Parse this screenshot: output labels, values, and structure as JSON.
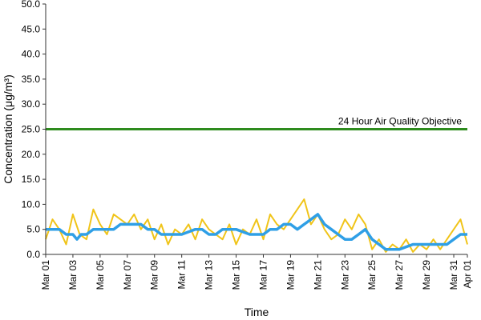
{
  "chart_data": {
    "type": "line",
    "xlabel": "Time",
    "ylabel": "Concentration (μg/m³)",
    "ylim": [
      0,
      50
    ],
    "yticks": [
      "0.0",
      "5.0",
      "10.0",
      "15.0",
      "20.0",
      "25.0",
      "30.0",
      "35.0",
      "40.0",
      "45.0",
      "50.0"
    ],
    "xticks": [
      "Mar 01",
      "Mar 03",
      "Mar 05",
      "Mar 07",
      "Mar 09",
      "Mar 11",
      "Mar 13",
      "Mar 15",
      "Mar 17",
      "Mar 19",
      "Mar 21",
      "Mar 23",
      "Mar 25",
      "Mar 27",
      "Mar 29",
      "Mar 31",
      "Apr 01"
    ],
    "x_range_days": [
      0,
      31
    ],
    "grid": false,
    "reference_line": {
      "label": "24 Hour Air Quality Objective",
      "value": 25.0,
      "color": "#2e8b1e"
    },
    "series": [
      {
        "color": "#f0c419",
        "x_days": [
          0,
          0.5,
          1,
          1.5,
          2,
          2.5,
          3,
          3.5,
          4,
          4.5,
          5,
          5.5,
          6,
          6.5,
          7,
          7.5,
          8,
          8.5,
          9,
          9.5,
          10,
          10.5,
          11,
          11.5,
          12,
          12.5,
          13,
          13.5,
          14,
          14.5,
          15,
          15.5,
          16,
          16.5,
          17,
          17.5,
          18,
          18.5,
          19,
          19.5,
          20,
          20.5,
          21,
          21.5,
          22,
          22.5,
          23,
          23.5,
          24,
          24.5,
          25,
          25.5,
          26,
          26.5,
          27,
          27.5,
          28,
          28.5,
          29,
          29.5,
          30,
          30.5,
          31
        ],
        "values": [
          3,
          7,
          5,
          2,
          8,
          4,
          3,
          9,
          6,
          4,
          8,
          7,
          6,
          8,
          5,
          7,
          3,
          6,
          2,
          5,
          4,
          6,
          3,
          7,
          5,
          4,
          3,
          6,
          2,
          5,
          4,
          7,
          3,
          8,
          6,
          5,
          7,
          9,
          11,
          6,
          8,
          5,
          3,
          4,
          7,
          5,
          8,
          6,
          1,
          3,
          0.5,
          2,
          1,
          3,
          0.5,
          2,
          1,
          3,
          1,
          3,
          5,
          7,
          2
        ],
        "stroke_width": 2
      },
      {
        "color": "#2f9fe6",
        "x_days": [
          0,
          1,
          1.5,
          2,
          2.3,
          2.6,
          3,
          3.5,
          4,
          5,
          5.5,
          6,
          6.5,
          7,
          7.5,
          8,
          8.5,
          9,
          10,
          11,
          11.5,
          12,
          12.5,
          13,
          14,
          15,
          16,
          16.5,
          17,
          17.5,
          18,
          18.5,
          19,
          19.5,
          20,
          20.5,
          21,
          21.5,
          22,
          22.5,
          23,
          23.5,
          24,
          25,
          25.5,
          26,
          27,
          28,
          29,
          29.5,
          30,
          30.5,
          31
        ],
        "values": [
          5,
          5,
          4,
          4,
          3,
          4,
          4,
          5,
          5,
          5,
          6,
          6,
          6,
          6,
          5,
          5,
          4,
          4,
          4,
          5,
          5,
          4,
          4,
          5,
          5,
          4,
          4,
          5,
          5,
          6,
          6,
          5,
          6,
          7,
          8,
          6,
          5,
          4,
          3,
          3,
          4,
          5,
          3,
          1,
          1,
          1,
          2,
          2,
          2,
          2,
          3,
          4,
          4
        ],
        "stroke_width": 3.5
      }
    ]
  }
}
